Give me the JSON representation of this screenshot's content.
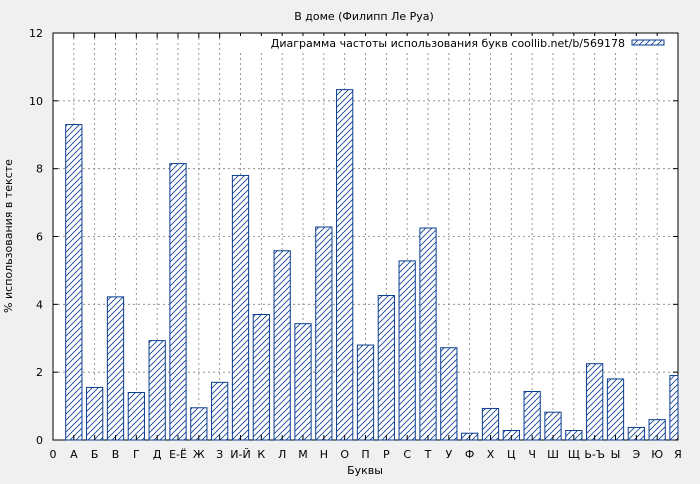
{
  "chart_data": {
    "type": "bar",
    "title": "В доме (Филипп Ле Руа)",
    "xlabel": "Буквы",
    "ylabel": "% использования в тексте",
    "ylim": [
      0,
      12
    ],
    "yticks": [
      0,
      2,
      4,
      6,
      8,
      10,
      12
    ],
    "grid": true,
    "legend_position": "top-right",
    "x_origin_label": "0",
    "series": [
      {
        "name": "Диаграмма частоты использования букв coollib.net/b/569178",
        "color": "#0b3d91",
        "fill": "hatch"
      }
    ],
    "categories": [
      "А",
      "Б",
      "В",
      "Г",
      "Д",
      "Е-Ё",
      "Ж",
      "З",
      "И-Й",
      "К",
      "Л",
      "М",
      "Н",
      "О",
      "П",
      "Р",
      "С",
      "Т",
      "У",
      "Ф",
      "Х",
      "Ц",
      "Ч",
      "Ш",
      "Щ",
      "Ь-Ъ",
      "Ы",
      "Э",
      "Ю",
      "Я"
    ],
    "values": [
      9.3,
      1.55,
      4.22,
      1.4,
      2.93,
      8.15,
      0.95,
      1.7,
      7.8,
      3.7,
      5.58,
      3.43,
      6.28,
      10.33,
      2.8,
      4.26,
      5.28,
      6.25,
      2.72,
      0.2,
      0.93,
      0.28,
      1.43,
      0.82,
      0.28,
      2.25,
      1.8,
      0.37,
      0.6,
      1.9
    ]
  }
}
